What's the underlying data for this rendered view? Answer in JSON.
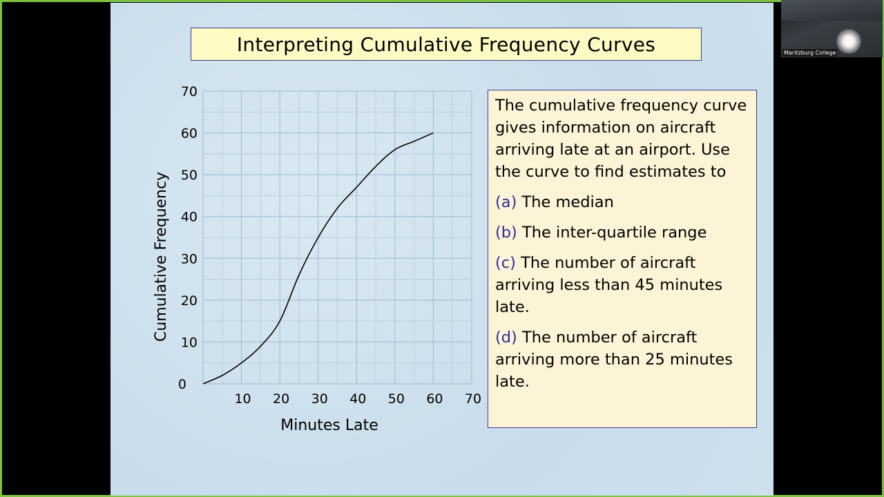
{
  "slide": {
    "title": "Interpreting Cumulative Frequency Curves",
    "intro": "The cumulative frequency curve gives information on aircraft arriving late at an airport. Use the curve to find estimates to",
    "questions": [
      {
        "label": "(a)",
        "text": "The median"
      },
      {
        "label": "(b)",
        "text": "The inter-quartile range"
      },
      {
        "label": "(c)",
        "text": "The number of aircraft arriving less than 45 minutes late."
      },
      {
        "label": "(d)",
        "text": "The number of aircraft arriving more than 25 minutes late."
      }
    ]
  },
  "chart_data": {
    "type": "line",
    "xlabel": "Minutes Late",
    "ylabel": "Cumulative Frequency",
    "xlim": [
      0,
      70
    ],
    "ylim": [
      0,
      70
    ],
    "x_ticks": [
      "10",
      "20",
      "30",
      "40",
      "50",
      "60",
      "70"
    ],
    "y_ticks": [
      "0",
      "10",
      "20",
      "30",
      "40",
      "50",
      "60",
      "70"
    ],
    "grid": true,
    "series": [
      {
        "x": [
          0,
          5,
          10,
          15,
          20,
          25,
          30,
          35,
          40,
          45,
          50,
          55,
          60
        ],
        "y": [
          0,
          2,
          5,
          9,
          15,
          26,
          35,
          42,
          47,
          52,
          56,
          58,
          60
        ]
      }
    ]
  },
  "video": {
    "participant_name": "Maritzburg College"
  },
  "colors": {
    "frame_border": "#7dc242",
    "title_bg": "#fdfac4",
    "question_bg": "#fdf3d6",
    "question_label": "#2e2e9a"
  }
}
